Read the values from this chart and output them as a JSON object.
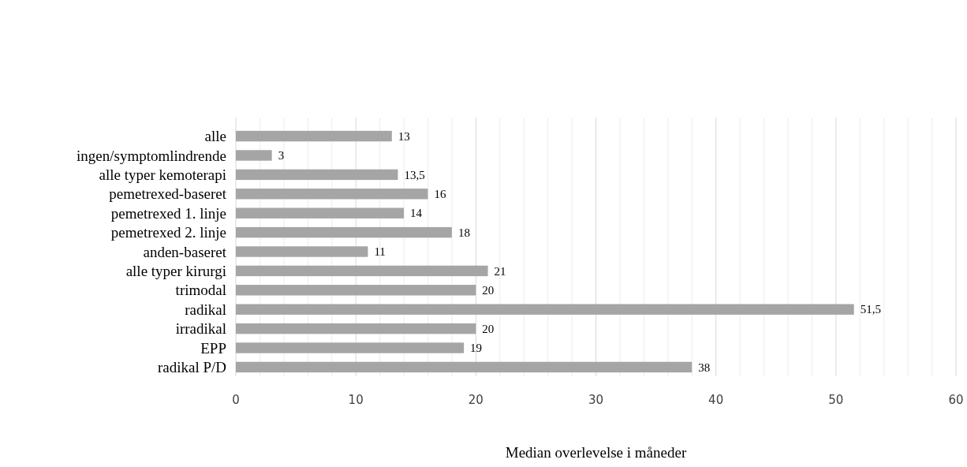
{
  "chart_data": {
    "type": "bar",
    "orientation": "horizontal",
    "xlabel": "Median overlevelse i måneder",
    "categories": [
      "alle",
      "ingen/symptomlindrende",
      "alle typer kemoterapi",
      "pemetrexed-baseret",
      "pemetrexed 1. linje",
      "pemetrexed 2. linje",
      "anden-baseret",
      "alle typer kirurgi",
      "trimodal",
      "radikal",
      "irradikal",
      "EPP",
      "radikal P/D"
    ],
    "values": [
      13,
      3,
      13.5,
      16,
      14,
      18,
      11,
      21,
      20,
      51.5,
      20,
      19,
      38
    ],
    "value_labels": [
      "13",
      "3",
      "13,5",
      "16",
      "14",
      "18",
      "11",
      "21",
      "20",
      "51,5",
      "20",
      "19",
      "38"
    ],
    "color": "#a5a5a5",
    "xlim": [
      0,
      60
    ],
    "xticks": [
      0,
      {
        "value": 2,
        "label": null
      },
      {
        "value": 4,
        "label": null
      },
      {
        "value": 6,
        "label": null
      },
      {
        "value": 8,
        "label": null
      },
      10,
      {
        "value": 12,
        "label": null
      },
      {
        "value": 14,
        "label": null
      },
      {
        "value": 16,
        "label": null
      },
      {
        "value": 18,
        "label": null
      },
      20,
      {
        "value": 22,
        "label": null
      },
      {
        "value": 24,
        "label": null
      },
      {
        "value": 26,
        "label": null
      },
      {
        "value": 28,
        "label": null
      },
      30,
      {
        "value": 32,
        "label": null
      },
      {
        "value": 34,
        "label": null
      },
      {
        "value": 36,
        "label": null
      },
      {
        "value": 38,
        "label": null
      },
      40,
      {
        "value": 42,
        "label": null
      },
      {
        "value": 44,
        "label": null
      },
      {
        "value": 46,
        "label": null
      },
      {
        "value": 48,
        "label": null
      },
      50,
      {
        "value": 52,
        "label": null
      },
      {
        "value": 54,
        "label": null
      },
      {
        "value": 56,
        "label": null
      },
      {
        "value": 58,
        "label": null
      },
      60
    ],
    "grid": "x"
  }
}
